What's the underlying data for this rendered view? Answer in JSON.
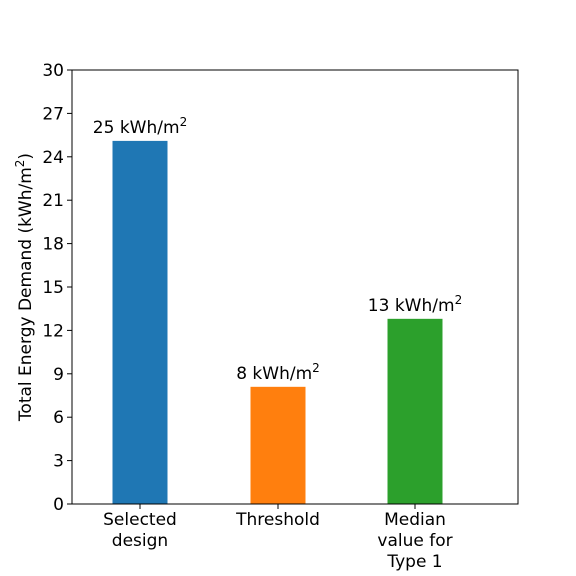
{
  "chart_data": {
    "type": "bar",
    "categories": [
      [
        "Selected",
        "design"
      ],
      [
        "Threshold"
      ],
      [
        "Median",
        "value for",
        "Type 1"
      ]
    ],
    "values": [
      25.1,
      8.1,
      12.8
    ],
    "data_labels": [
      "25 kWh/m",
      "8 kWh/m",
      "13 kWh/m"
    ],
    "data_label_superscript": "2",
    "colors": [
      "#1f77b4",
      "#ff7f0e",
      "#2ca02c"
    ],
    "ylabel": "Total Energy Demand (kWh/m",
    "ylabel_superscript": "2",
    "ylabel_suffix": ")",
    "ylim": [
      0,
      30
    ],
    "yticks": [
      0,
      3,
      6,
      9,
      12,
      15,
      18,
      21,
      24,
      27,
      30
    ],
    "grid": false,
    "legend": "none"
  }
}
